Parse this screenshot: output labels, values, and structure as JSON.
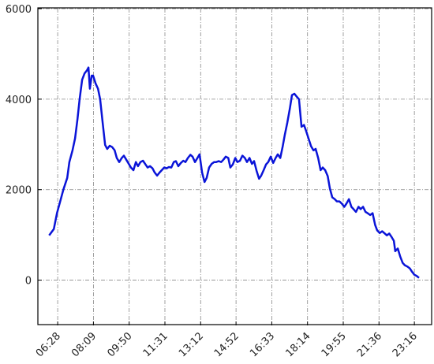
{
  "chart_data": {
    "type": "line",
    "x": [
      364,
      377,
      386,
      395,
      404,
      415,
      421,
      430,
      437,
      444,
      450,
      457,
      464,
      471,
      475,
      479,
      484,
      488,
      495,
      502,
      508,
      515,
      522,
      528,
      535,
      542,
      549,
      555,
      562,
      569,
      575,
      582,
      589,
      595,
      602,
      609,
      615,
      622,
      629,
      636,
      642,
      649,
      656,
      662,
      669,
      676,
      682,
      689,
      696,
      702,
      709,
      716,
      722,
      729,
      736,
      743,
      749,
      756,
      763,
      769,
      776,
      783,
      789,
      796,
      803,
      809,
      816,
      823,
      830,
      836,
      843,
      850,
      856,
      863,
      870,
      876,
      883,
      890,
      896,
      903,
      910,
      917,
      923,
      930,
      937,
      943,
      950,
      957,
      963,
      970,
      977,
      983,
      990,
      997,
      1004,
      1010,
      1017,
      1024,
      1030,
      1037,
      1044,
      1050,
      1057,
      1064,
      1070,
      1077,
      1084,
      1090,
      1097,
      1104,
      1111,
      1117,
      1124,
      1131,
      1137,
      1144,
      1151,
      1157,
      1164,
      1171,
      1177,
      1184,
      1191,
      1198,
      1204,
      1211,
      1218,
      1224,
      1231,
      1238,
      1244,
      1251,
      1258,
      1264,
      1271,
      1278,
      1285,
      1291,
      1298,
      1305,
      1311,
      1318,
      1325,
      1331,
      1338,
      1342,
      1349,
      1356,
      1363,
      1369,
      1376,
      1383,
      1389,
      1396,
      1403,
      1409
    ],
    "series": [
      {
        "color": "#0a14d8",
        "values": [
          990,
          1130,
          1480,
          1740,
          2000,
          2260,
          2610,
          2870,
          3130,
          3560,
          4000,
          4430,
          4570,
          4640,
          4700,
          4230,
          4520,
          4520,
          4350,
          4230,
          4000,
          3480,
          2990,
          2900,
          2970,
          2940,
          2870,
          2700,
          2610,
          2700,
          2750,
          2660,
          2570,
          2490,
          2430,
          2610,
          2520,
          2610,
          2640,
          2560,
          2490,
          2520,
          2470,
          2380,
          2310,
          2380,
          2430,
          2490,
          2470,
          2500,
          2490,
          2610,
          2630,
          2520,
          2590,
          2640,
          2610,
          2700,
          2770,
          2730,
          2610,
          2700,
          2780,
          2380,
          2170,
          2260,
          2490,
          2570,
          2610,
          2610,
          2630,
          2610,
          2660,
          2730,
          2700,
          2490,
          2560,
          2700,
          2610,
          2640,
          2750,
          2700,
          2610,
          2700,
          2570,
          2630,
          2420,
          2240,
          2310,
          2430,
          2560,
          2610,
          2730,
          2590,
          2700,
          2780,
          2700,
          2960,
          3220,
          3480,
          3790,
          4090,
          4120,
          4050,
          4000,
          3390,
          3430,
          3300,
          3130,
          2960,
          2870,
          2900,
          2700,
          2430,
          2490,
          2430,
          2300,
          2030,
          1830,
          1790,
          1740,
          1740,
          1690,
          1620,
          1690,
          1790,
          1620,
          1570,
          1510,
          1620,
          1570,
          1620,
          1510,
          1480,
          1440,
          1480,
          1220,
          1100,
          1040,
          1080,
          1040,
          990,
          1030,
          960,
          870,
          640,
          700,
          520,
          380,
          330,
          300,
          260,
          190,
          120,
          90,
          50
        ]
      }
    ],
    "xlim": [
      332,
      1447
    ],
    "xticks": [
      {
        "value": 388,
        "label": "06:28"
      },
      {
        "value": 489,
        "label": "08:09"
      },
      {
        "value": 590,
        "label": "09:50"
      },
      {
        "value": 691,
        "label": "11:31"
      },
      {
        "value": 792,
        "label": "13:12"
      },
      {
        "value": 892,
        "label": "14:52"
      },
      {
        "value": 993,
        "label": "16:33"
      },
      {
        "value": 1094,
        "label": "18:14"
      },
      {
        "value": 1195,
        "label": "19:55"
      },
      {
        "value": 1296,
        "label": "21:36"
      },
      {
        "value": 1396,
        "label": "23:16"
      }
    ],
    "ylim": [
      -1000,
      6000
    ],
    "yticks": [
      0,
      2000,
      4000,
      6000
    ],
    "grid": true
  }
}
